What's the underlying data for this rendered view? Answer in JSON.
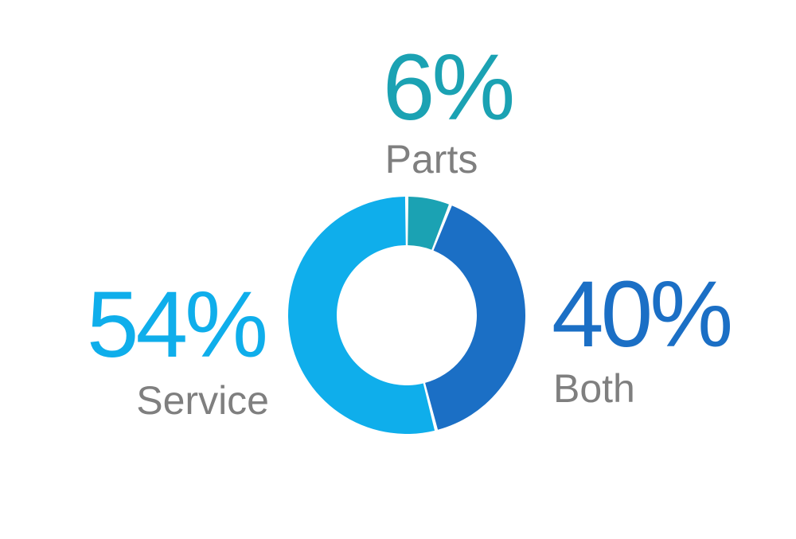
{
  "chart_data": {
    "type": "pie",
    "categories": [
      "Parts",
      "Both",
      "Service"
    ],
    "values": [
      6,
      40,
      54
    ],
    "value_labels": [
      "6%",
      "40%",
      "54%"
    ],
    "colors": {
      "Parts": "#1BA2B3",
      "Both": "#1B6FC5",
      "Service": "#0FAEEB"
    },
    "label_color": "#7F7F7F",
    "donut": true
  }
}
